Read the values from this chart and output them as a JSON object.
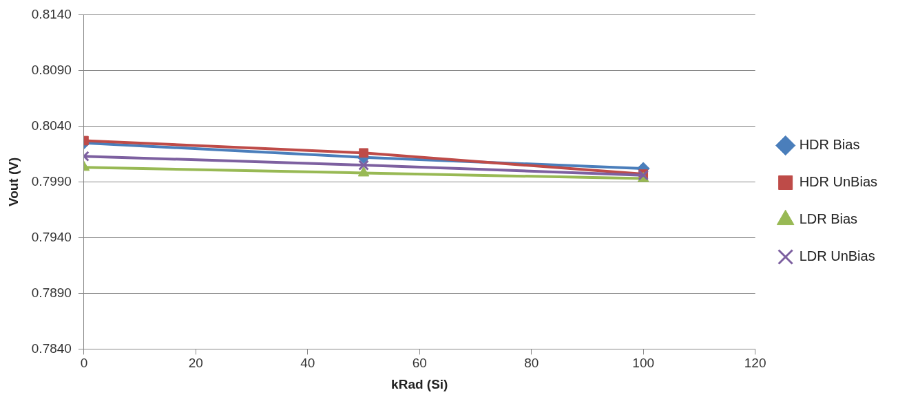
{
  "chart_data": {
    "type": "line",
    "xlabel": "kRad (Si)",
    "ylabel": "Vout (V)",
    "x": [
      0,
      50,
      100
    ],
    "xlim": [
      0,
      120
    ],
    "xticks": [
      0,
      20,
      40,
      60,
      80,
      100,
      120
    ],
    "ylim": [
      0.784,
      0.814
    ],
    "yticks": [
      {
        "value": 0.784,
        "label": "0.7840"
      },
      {
        "value": 0.789,
        "label": "0.7890"
      },
      {
        "value": 0.794,
        "label": "0.7940"
      },
      {
        "value": 0.799,
        "label": "0.7990"
      },
      {
        "value": 0.804,
        "label": "0.8040"
      },
      {
        "value": 0.809,
        "label": "0.8090"
      },
      {
        "value": 0.814,
        "label": "0.8140"
      }
    ],
    "grid": "y",
    "legend": "right",
    "line_style": "solid",
    "series": [
      {
        "name": "HDR Bias",
        "color": "#4a7ebb",
        "marker": "diamond",
        "values": [
          0.8025,
          0.8012,
          0.8002
        ]
      },
      {
        "name": "HDR UnBias",
        "color": "#be4b48",
        "marker": "square",
        "values": [
          0.8027,
          0.8016,
          0.7997
        ]
      },
      {
        "name": "LDR Bias",
        "color": "#98b954",
        "marker": "triangle",
        "values": [
          0.8003,
          0.7998,
          0.7993
        ]
      },
      {
        "name": "LDR UnBias",
        "color": "#7d60a0",
        "marker": "cross",
        "values": [
          0.8013,
          0.8005,
          0.7996
        ]
      }
    ]
  }
}
